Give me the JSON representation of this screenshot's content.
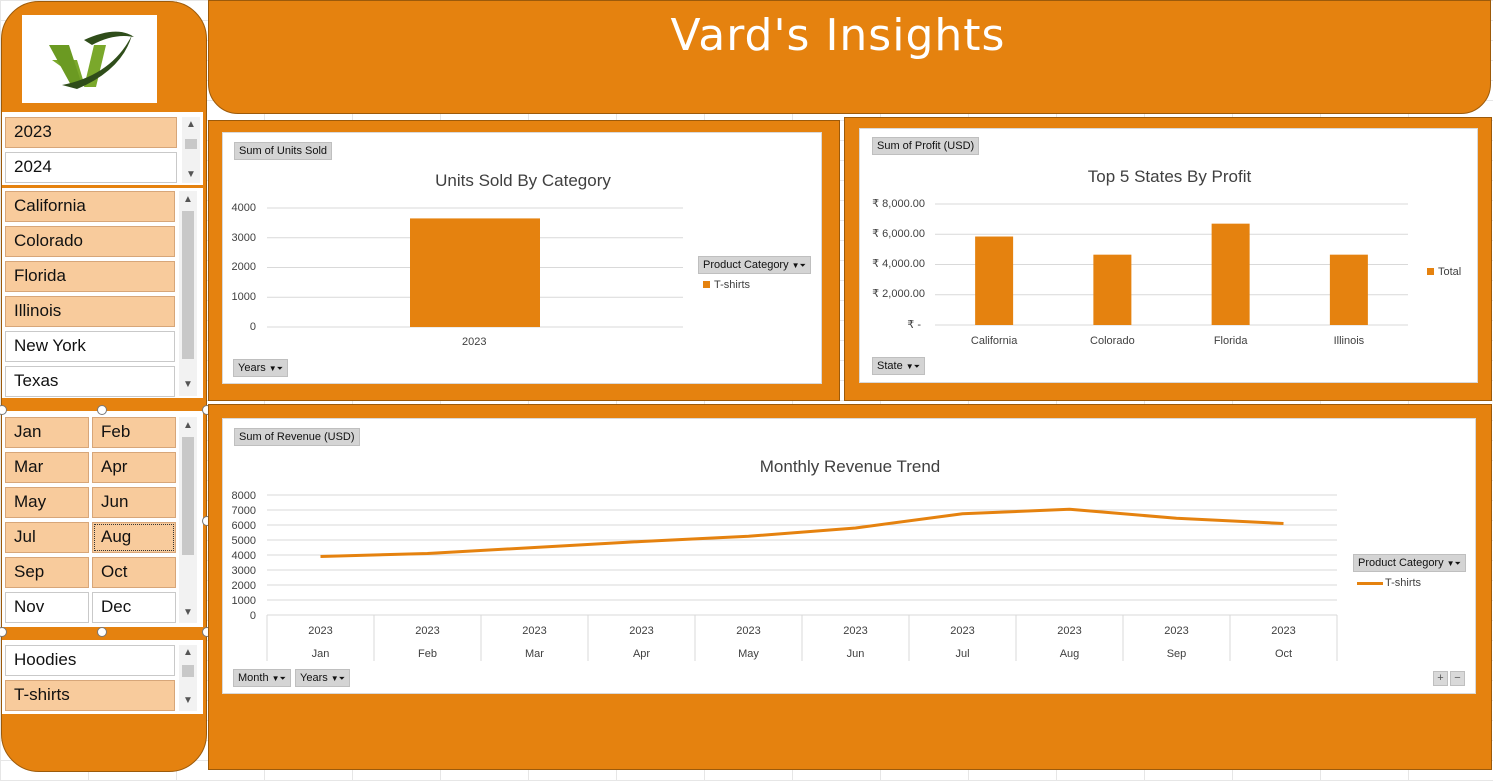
{
  "header": {
    "title": "Vard's  Insights"
  },
  "logo": {
    "text": "VI"
  },
  "slicers": {
    "years": {
      "items": [
        {
          "label": "2023",
          "selected": true
        },
        {
          "label": "2024",
          "selected": false
        }
      ]
    },
    "states": {
      "items": [
        {
          "label": "California",
          "selected": true
        },
        {
          "label": "Colorado",
          "selected": true
        },
        {
          "label": "Florida",
          "selected": true
        },
        {
          "label": "Illinois",
          "selected": true
        },
        {
          "label": "New York",
          "selected": false
        },
        {
          "label": "Texas",
          "selected": false
        }
      ]
    },
    "months": {
      "items": [
        {
          "label": "Jan",
          "selected": true
        },
        {
          "label": "Feb",
          "selected": true
        },
        {
          "label": "Mar",
          "selected": true
        },
        {
          "label": "Apr",
          "selected": true
        },
        {
          "label": "May",
          "selected": true
        },
        {
          "label": "Jun",
          "selected": true
        },
        {
          "label": "Jul",
          "selected": true
        },
        {
          "label": "Aug",
          "selected": true
        },
        {
          "label": "Sep",
          "selected": true
        },
        {
          "label": "Oct",
          "selected": true
        },
        {
          "label": "Nov",
          "selected": false
        },
        {
          "label": "Dec",
          "selected": false
        }
      ]
    },
    "categories": {
      "items": [
        {
          "label": "Hoodies",
          "selected": false
        },
        {
          "label": "T-shirts",
          "selected": true
        }
      ]
    }
  },
  "units_chart": {
    "field_value": "Sum of Units Sold",
    "field_axis": "Years",
    "field_legend": "Product Category",
    "title": "Units Sold By Category",
    "legend_item": "T-shirts",
    "y_ticks": [
      "4000",
      "3000",
      "2000",
      "1000",
      "0"
    ],
    "x_label": "2023"
  },
  "profit_chart": {
    "field_value": "Sum of Profit (USD)",
    "field_axis": "State",
    "title": "Top 5 States By Profit",
    "legend_item": "Total",
    "y_ticks": [
      "₹ 8,000.00",
      "₹ 6,000.00",
      "₹ 4,000.00",
      "₹ 2,000.00",
      "₹ -"
    ]
  },
  "revenue_chart": {
    "field_value": "Sum of Revenue (USD)",
    "field_legend": "Product Category",
    "field_axis1": "Month",
    "field_axis2": "Years",
    "title": "Monthly Revenue Trend",
    "legend_item": "T-shirts",
    "y_ticks": [
      "8000",
      "7000",
      "6000",
      "5000",
      "4000",
      "3000",
      "2000",
      "1000",
      "0"
    ]
  },
  "colors": {
    "accent": "#e5820f",
    "selected": "#f8cb9c"
  },
  "chart_data": [
    {
      "type": "bar",
      "title": "Units Sold By Category",
      "categories": [
        "2023"
      ],
      "series": [
        {
          "name": "T-shirts",
          "values": [
            3650
          ]
        }
      ],
      "ylim": [
        0,
        4000
      ]
    },
    {
      "type": "bar",
      "title": "Top 5 States By Profit",
      "categories": [
        "California",
        "Colorado",
        "Florida",
        "Illinois"
      ],
      "series": [
        {
          "name": "Total",
          "values": [
            5850,
            4650,
            6700,
            4650
          ]
        }
      ],
      "ylim": [
        0,
        8000
      ]
    },
    {
      "type": "line",
      "title": "Monthly Revenue Trend",
      "categories": [
        "Jan",
        "Feb",
        "Mar",
        "Apr",
        "May",
        "Jun",
        "Jul",
        "Aug",
        "Sep",
        "Oct"
      ],
      "year": "2023",
      "series": [
        {
          "name": "T-shirts",
          "values": [
            3900,
            4100,
            4500,
            4900,
            5250,
            5800,
            6750,
            7050,
            6450,
            6100
          ]
        }
      ],
      "ylim": [
        0,
        8000
      ]
    }
  ]
}
